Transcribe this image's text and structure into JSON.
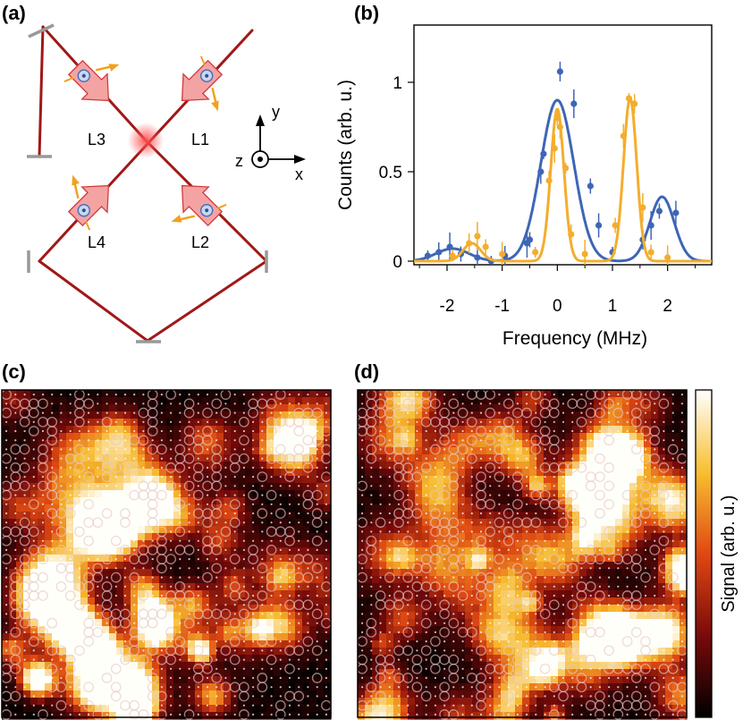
{
  "panels": {
    "a": "(a)",
    "b": "(b)",
    "c": "(c)",
    "d": "(d)"
  },
  "setup": {
    "beams": [
      "L1",
      "L2",
      "L3",
      "L4"
    ],
    "axes": {
      "x": "x",
      "y": "y",
      "z": "z"
    },
    "colors": {
      "beam": "#a01818",
      "mirror": "#999999",
      "arrow": "#f2a11c",
      "aom": "#f4a3a3"
    }
  },
  "chart_data": {
    "type": "scatter",
    "xlabel": "Frequency (MHz)",
    "ylabel": "Counts (arb. u.)",
    "xlim": [
      -2.6,
      2.8
    ],
    "ylim": [
      -0.02,
      1.32
    ],
    "xticks": [
      "-2",
      "-1",
      "0",
      "1",
      "2"
    ],
    "yticks": [
      "0",
      "0.5",
      "1"
    ],
    "series": [
      {
        "color": "#3e66b6",
        "fit_peaks": [
          {
            "center": 0.0,
            "amp": 0.9,
            "width": 0.3
          },
          {
            "center": 1.9,
            "amp": 0.36,
            "width": 0.22
          },
          {
            "center": -1.9,
            "amp": 0.07,
            "width": 0.3
          }
        ],
        "points": [
          {
            "x": -2.35,
            "y": 0.03
          },
          {
            "x": -2.15,
            "y": 0.05
          },
          {
            "x": -1.95,
            "y": 0.08
          },
          {
            "x": -1.75,
            "y": 0.04
          },
          {
            "x": -1.45,
            "y": 0.02
          },
          {
            "x": -1.2,
            "y": 0.0
          },
          {
            "x": -0.95,
            "y": 0.03
          },
          {
            "x": -0.55,
            "y": 0.1
          },
          {
            "x": -0.5,
            "y": 0.12
          },
          {
            "x": -0.3,
            "y": 0.5
          },
          {
            "x": -0.25,
            "y": 0.6
          },
          {
            "x": 0.05,
            "y": 1.06
          },
          {
            "x": 0.3,
            "y": 0.88
          },
          {
            "x": 0.6,
            "y": 0.42
          },
          {
            "x": 0.75,
            "y": 0.2
          },
          {
            "x": 1.0,
            "y": 0.05
          },
          {
            "x": 1.55,
            "y": 0.12
          },
          {
            "x": 1.7,
            "y": 0.2
          },
          {
            "x": 1.85,
            "y": 0.28
          },
          {
            "x": 2.15,
            "y": 0.27
          }
        ]
      },
      {
        "color": "#f4ad2d",
        "fit_peaks": [
          {
            "center": 0.0,
            "amp": 0.85,
            "width": 0.12
          },
          {
            "center": 1.32,
            "amp": 0.91,
            "width": 0.12
          },
          {
            "center": -1.55,
            "amp": 0.1,
            "width": 0.16
          }
        ],
        "points": [
          {
            "x": -1.9,
            "y": 0.03
          },
          {
            "x": -1.6,
            "y": 0.1
          },
          {
            "x": -1.45,
            "y": 0.14
          },
          {
            "x": -1.3,
            "y": 0.08
          },
          {
            "x": -1.0,
            "y": 0.04
          },
          {
            "x": -0.4,
            "y": 0.05
          },
          {
            "x": -0.15,
            "y": 0.45
          },
          {
            "x": -0.05,
            "y": 0.63
          },
          {
            "x": 0.0,
            "y": 0.8
          },
          {
            "x": 0.05,
            "y": 0.75
          },
          {
            "x": 0.15,
            "y": 0.52
          },
          {
            "x": 0.25,
            "y": 0.15
          },
          {
            "x": 0.5,
            "y": 0.04
          },
          {
            "x": 1.05,
            "y": 0.2
          },
          {
            "x": 1.2,
            "y": 0.7
          },
          {
            "x": 1.3,
            "y": 0.91
          },
          {
            "x": 1.4,
            "y": 0.88
          },
          {
            "x": 1.55,
            "y": 0.3
          },
          {
            "x": 1.7,
            "y": 0.05
          },
          {
            "x": 2.0,
            "y": 0.02
          }
        ]
      }
    ]
  },
  "colorbar": {
    "label": "Signal (arb. u.)"
  }
}
